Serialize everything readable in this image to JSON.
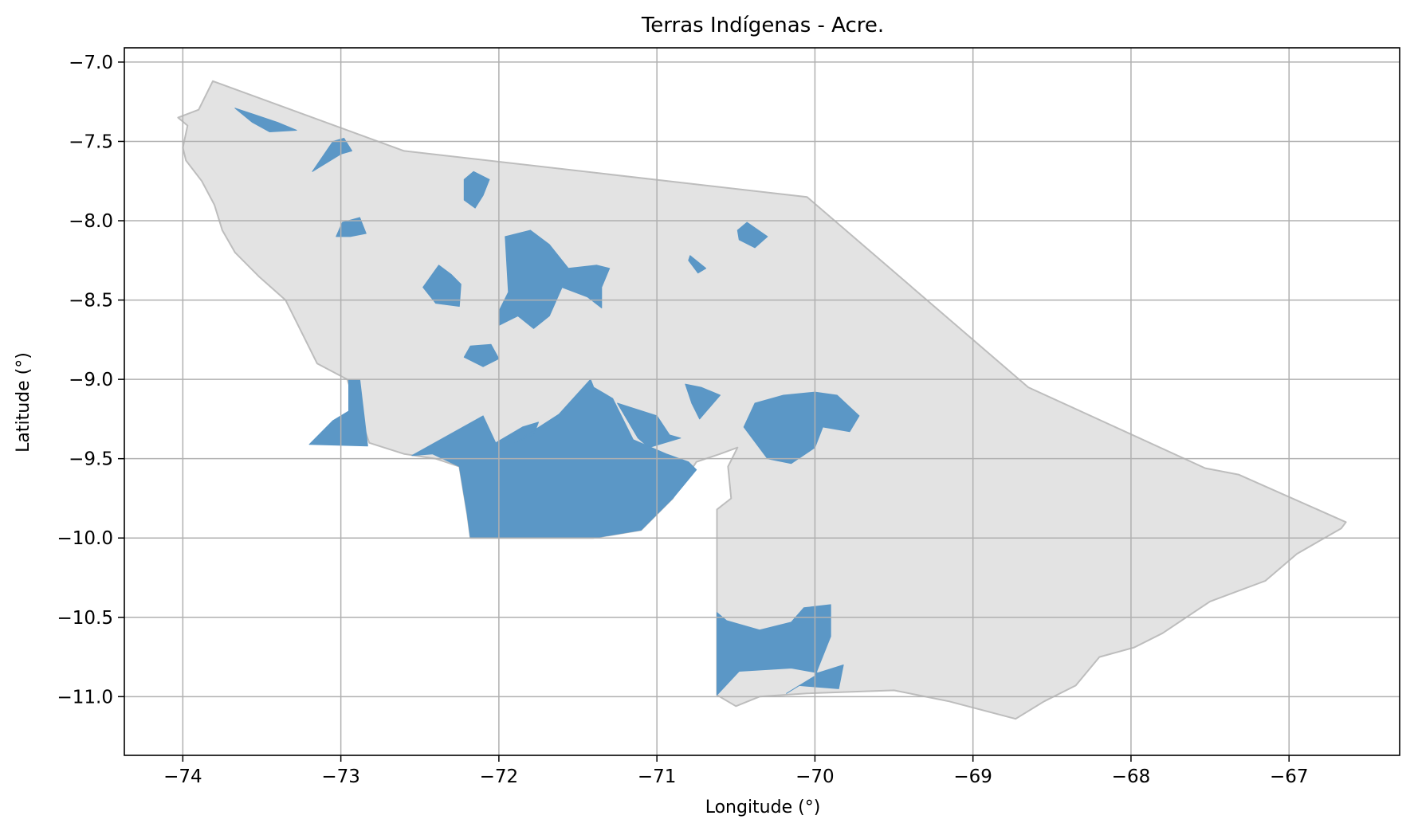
{
  "chart": {
    "title": "Terras Indígenas - Acre.",
    "xlabel": "Longitude (°)",
    "ylabel": "Latitude (°)"
  },
  "colors": {
    "state_fill": "#e3e3e3",
    "state_edge": "#bdbdbd",
    "indigenous_land_fill": "#5b97c6",
    "grid": "#b0b0b0",
    "axes": "#000000"
  },
  "chart_data": {
    "type": "map",
    "title": "Terras Indígenas - Acre.",
    "xlabel": "Longitude (°)",
    "ylabel": "Latitude (°)",
    "xlim": [
      -74.37,
      -66.3
    ],
    "ylim": [
      -11.37,
      -6.91
    ],
    "grid": true,
    "x_ticks": [
      -74,
      -73,
      -72,
      -71,
      -70,
      -69,
      -68,
      -67
    ],
    "x_tick_labels": [
      "−74",
      "−73",
      "−72",
      "−71",
      "−70",
      "−69",
      "−68",
      "−67"
    ],
    "y_ticks": [
      -7.0,
      -7.5,
      -8.0,
      -8.5,
      -9.0,
      -9.5,
      -10.0,
      -10.5,
      -11.0
    ],
    "y_tick_labels": [
      "−7.0",
      "−7.5",
      "−8.0",
      "−8.5",
      "−9.0",
      "−9.5",
      "−10.0",
      "−10.5",
      "−11.0"
    ],
    "state_outline": [
      [
        -73.81,
        -7.12
      ],
      [
        -72.6,
        -7.56
      ],
      [
        -70.05,
        -7.85
      ],
      [
        -68.65,
        -9.05
      ],
      [
        -67.53,
        -9.56
      ],
      [
        -67.32,
        -9.6
      ],
      [
        -66.64,
        -9.9
      ],
      [
        -66.67,
        -9.94
      ],
      [
        -66.95,
        -10.1
      ],
      [
        -67.15,
        -10.27
      ],
      [
        -67.5,
        -10.4
      ],
      [
        -67.8,
        -10.6
      ],
      [
        -67.98,
        -10.69
      ],
      [
        -68.2,
        -10.75
      ],
      [
        -68.35,
        -10.93
      ],
      [
        -68.55,
        -11.03
      ],
      [
        -68.73,
        -11.14
      ],
      [
        -69.15,
        -11.03
      ],
      [
        -69.5,
        -10.96
      ],
      [
        -70.05,
        -10.98
      ],
      [
        -70.35,
        -11.0
      ],
      [
        -70.5,
        -11.06
      ],
      [
        -70.62,
        -10.99
      ],
      [
        -70.62,
        -9.82
      ],
      [
        -70.53,
        -9.75
      ],
      [
        -70.55,
        -9.55
      ],
      [
        -70.49,
        -9.43
      ],
      [
        -70.6,
        -9.47
      ],
      [
        -70.75,
        -9.52
      ],
      [
        -70.9,
        -9.75
      ],
      [
        -71.1,
        -9.95
      ],
      [
        -71.4,
        -10.0
      ],
      [
        -72.18,
        -10.0
      ],
      [
        -72.2,
        -9.85
      ],
      [
        -72.25,
        -9.55
      ],
      [
        -72.4,
        -9.5
      ],
      [
        -72.6,
        -9.47
      ],
      [
        -72.82,
        -9.4
      ],
      [
        -72.96,
        -9.0
      ],
      [
        -73.15,
        -8.9
      ],
      [
        -73.25,
        -8.7
      ],
      [
        -73.35,
        -8.5
      ],
      [
        -73.52,
        -8.35
      ],
      [
        -73.67,
        -8.2
      ],
      [
        -73.75,
        -8.06
      ],
      [
        -73.8,
        -7.9
      ],
      [
        -73.88,
        -7.75
      ],
      [
        -73.98,
        -7.62
      ],
      [
        -74.0,
        -7.54
      ],
      [
        -73.97,
        -7.4
      ],
      [
        -74.03,
        -7.35
      ],
      [
        -73.9,
        -7.3
      ]
    ],
    "indigenous_lands": [
      [
        [
          -73.67,
          -7.29
        ],
        [
          -73.55,
          -7.33
        ],
        [
          -73.4,
          -7.38
        ],
        [
          -73.28,
          -7.43
        ],
        [
          -73.45,
          -7.44
        ],
        [
          -73.56,
          -7.38
        ]
      ],
      [
        [
          -73.18,
          -7.69
        ],
        [
          -73.05,
          -7.5
        ],
        [
          -72.98,
          -7.48
        ],
        [
          -72.93,
          -7.56
        ],
        [
          -73.0,
          -7.58
        ]
      ],
      [
        [
          -72.16,
          -7.69
        ],
        [
          -72.06,
          -7.74
        ],
        [
          -72.1,
          -7.84
        ],
        [
          -72.15,
          -7.92
        ],
        [
          -72.22,
          -7.87
        ],
        [
          -72.22,
          -7.74
        ]
      ],
      [
        [
          -73.03,
          -8.1
        ],
        [
          -72.99,
          -8.01
        ],
        [
          -72.88,
          -7.98
        ],
        [
          -72.84,
          -8.08
        ],
        [
          -72.94,
          -8.1
        ]
      ],
      [
        [
          -72.3,
          -8.34
        ],
        [
          -72.24,
          -8.4
        ],
        [
          -72.25,
          -8.54
        ],
        [
          -72.4,
          -8.52
        ],
        [
          -72.48,
          -8.42
        ],
        [
          -72.38,
          -8.28
        ]
      ],
      [
        [
          -71.96,
          -8.1
        ],
        [
          -71.8,
          -8.06
        ],
        [
          -71.68,
          -8.15
        ],
        [
          -71.56,
          -8.3
        ],
        [
          -71.38,
          -8.28
        ],
        [
          -71.3,
          -8.3
        ],
        [
          -71.35,
          -8.42
        ],
        [
          -71.35,
          -8.55
        ],
        [
          -71.44,
          -8.48
        ],
        [
          -71.6,
          -8.42
        ],
        [
          -71.68,
          -8.6
        ],
        [
          -71.78,
          -8.68
        ],
        [
          -71.88,
          -8.6
        ],
        [
          -72.0,
          -8.66
        ],
        [
          -72.0,
          -8.57
        ],
        [
          -71.94,
          -8.45
        ]
      ],
      [
        [
          -72.18,
          -8.79
        ],
        [
          -72.05,
          -8.78
        ],
        [
          -72.0,
          -8.87
        ],
        [
          -72.1,
          -8.92
        ],
        [
          -72.22,
          -8.86
        ]
      ],
      [
        [
          -70.79,
          -8.22
        ],
        [
          -70.69,
          -8.3
        ],
        [
          -70.74,
          -8.33
        ],
        [
          -70.8,
          -8.25
        ]
      ],
      [
        [
          -70.43,
          -8.01
        ],
        [
          -70.49,
          -8.06
        ],
        [
          -70.48,
          -8.12
        ],
        [
          -70.38,
          -8.17
        ],
        [
          -70.3,
          -8.1
        ]
      ],
      [
        [
          -70.82,
          -9.03
        ],
        [
          -70.78,
          -9.15
        ],
        [
          -70.73,
          -9.25
        ],
        [
          -70.6,
          -9.1
        ],
        [
          -70.72,
          -9.05
        ]
      ],
      [
        [
          -73.2,
          -9.41
        ],
        [
          -73.05,
          -9.26
        ],
        [
          -72.95,
          -9.2
        ],
        [
          -72.95,
          -9.0
        ],
        [
          -72.88,
          -9.0
        ],
        [
          -72.83,
          -9.42
        ]
      ],
      [
        [
          -71.25,
          -9.15
        ],
        [
          -71.0,
          -9.23
        ],
        [
          -70.92,
          -9.35
        ],
        [
          -70.85,
          -9.37
        ],
        [
          -71.05,
          -9.43
        ],
        [
          -71.12,
          -9.37
        ]
      ],
      [
        [
          -70.45,
          -9.3
        ],
        [
          -70.38,
          -9.15
        ],
        [
          -70.2,
          -9.1
        ],
        [
          -70.0,
          -9.08
        ],
        [
          -69.86,
          -9.1
        ],
        [
          -69.72,
          -9.23
        ],
        [
          -69.78,
          -9.33
        ],
        [
          -69.95,
          -9.3
        ],
        [
          -70.0,
          -9.43
        ],
        [
          -70.15,
          -9.53
        ],
        [
          -70.3,
          -9.5
        ]
      ],
      [
        [
          -72.1,
          -9.23
        ],
        [
          -72.02,
          -9.4
        ],
        [
          -71.85,
          -9.3
        ],
        [
          -71.75,
          -9.27
        ],
        [
          -71.78,
          -9.35
        ],
        [
          -71.9,
          -9.4
        ],
        [
          -71.62,
          -9.22
        ],
        [
          -71.42,
          -9.0
        ],
        [
          -71.4,
          -9.05
        ],
        [
          -71.28,
          -9.12
        ],
        [
          -71.15,
          -9.38
        ],
        [
          -70.94,
          -9.47
        ],
        [
          -70.8,
          -9.52
        ],
        [
          -70.75,
          -9.57
        ],
        [
          -70.9,
          -9.75
        ],
        [
          -71.1,
          -9.95
        ],
        [
          -71.4,
          -10.0
        ],
        [
          -72.18,
          -10.0
        ],
        [
          -72.2,
          -9.85
        ],
        [
          -72.25,
          -9.55
        ],
        [
          -72.42,
          -9.47
        ],
        [
          -72.55,
          -9.48
        ]
      ],
      [
        [
          -70.62,
          -10.47
        ],
        [
          -70.56,
          -10.52
        ],
        [
          -70.35,
          -10.58
        ],
        [
          -70.15,
          -10.53
        ],
        [
          -70.07,
          -10.44
        ],
        [
          -69.9,
          -10.42
        ],
        [
          -69.9,
          -10.62
        ],
        [
          -70.0,
          -10.87
        ],
        [
          -70.18,
          -10.98
        ],
        [
          -70.1,
          -10.93
        ],
        [
          -69.85,
          -10.95
        ],
        [
          -69.82,
          -10.8
        ],
        [
          -69.98,
          -10.85
        ],
        [
          -70.15,
          -10.82
        ],
        [
          -70.48,
          -10.84
        ],
        [
          -70.62,
          -10.99
        ]
      ]
    ]
  }
}
